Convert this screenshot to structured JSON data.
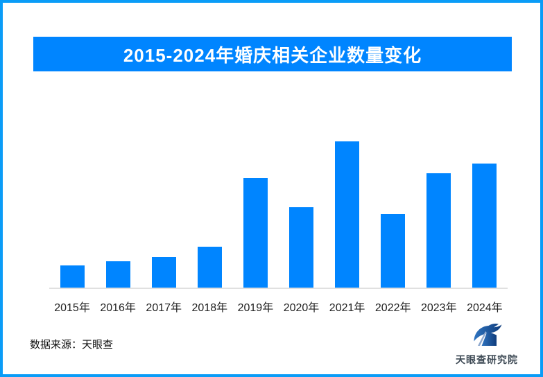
{
  "title_banner": {
    "text": "2015-2024年婚庆相关企业数量变化"
  },
  "chart_data": {
    "type": "bar",
    "title": "2015-2024年婚庆相关企业数量变化",
    "categories": [
      "2015年",
      "2016年",
      "2017年",
      "2018年",
      "2019年",
      "2020年",
      "2021年",
      "2022年",
      "2023年",
      "2024年"
    ],
    "values": [
      15,
      18,
      21,
      28,
      75,
      55,
      100,
      50,
      78,
      85
    ],
    "xlabel": "",
    "ylabel": "",
    "ylim": [
      0,
      104
    ],
    "grid": false,
    "legend": false,
    "y_axis_tick_labels_visible": false,
    "value_labels_visible": false,
    "bar_color": "#0085ff",
    "axis_line_color": "#e0e0e0"
  },
  "footer": {
    "source": "数据来源：天眼查",
    "logo_text": "天眼查研究院"
  },
  "colors": {
    "accent_blue": "#0085ff",
    "frame_border": "#0a9cf7",
    "axis_line": "#e0e0e0",
    "logo_blue_dark": "#0f3c7c",
    "logo_blue_light": "#2f74c0"
  },
  "icons": {
    "logo_icon": "tianyancha-swoosh-house-icon"
  }
}
